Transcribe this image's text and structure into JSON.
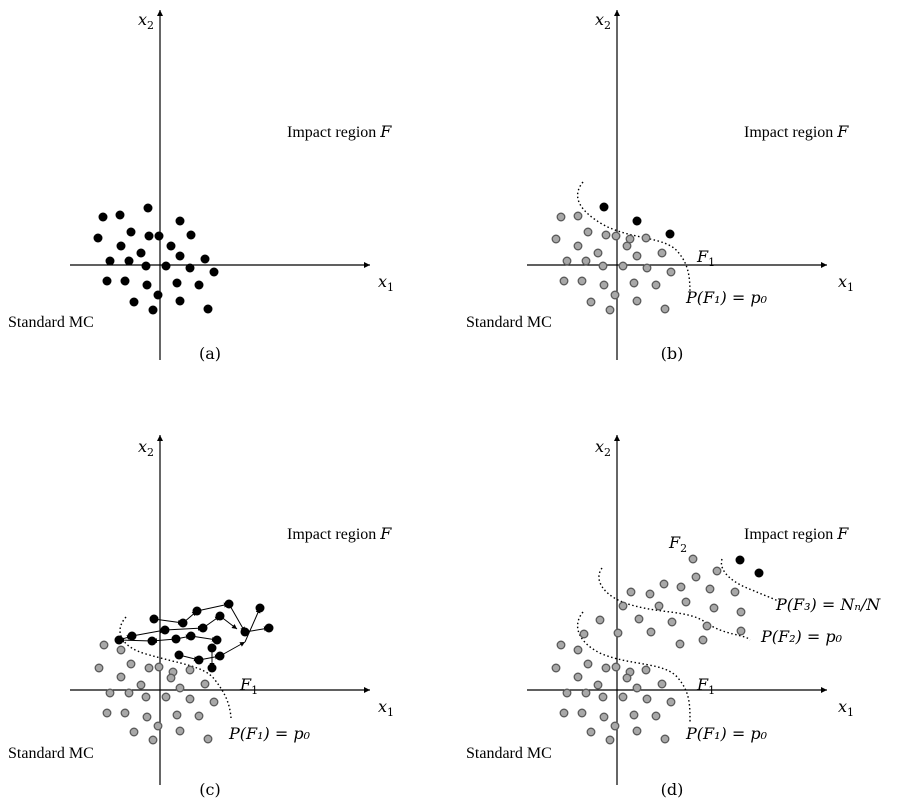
{
  "figure": {
    "panels": [
      {
        "caption": "(a)",
        "axis_x": "x",
        "axis_x_sub": "1",
        "axis_y": "x",
        "axis_y_sub": "2",
        "region_label": "Impact region ",
        "region_symbol": "F",
        "method_label": "Standard MC",
        "levels": []
      },
      {
        "caption": "(b)",
        "axis_x": "x",
        "axis_x_sub": "1",
        "axis_y": "x",
        "axis_y_sub": "2",
        "region_label": "Impact region ",
        "region_symbol": "F",
        "method_label": "Standard MC",
        "levels": [
          {
            "name": "F",
            "sub": "1",
            "prob_text": "P(F₁) = p₀"
          }
        ]
      },
      {
        "caption": "(c)",
        "axis_x": "x",
        "axis_x_sub": "1",
        "axis_y": "x",
        "axis_y_sub": "2",
        "region_label": "Impact region ",
        "region_symbol": "F",
        "method_label": "Standard MC",
        "levels": [
          {
            "name": "F",
            "sub": "1",
            "prob_text": "P(F₁) = p₀"
          }
        ]
      },
      {
        "caption": "(d)",
        "axis_x": "x",
        "axis_x_sub": "1",
        "axis_y": "x",
        "axis_y_sub": "2",
        "region_label": "Impact region ",
        "region_symbol": "F",
        "method_label": "Standard MC",
        "levels": [
          {
            "name": "F",
            "sub": "1",
            "prob_text": "P(F₁) = p₀"
          },
          {
            "name": "F",
            "sub": "2",
            "prob_text": "P(F₂) = p₀"
          },
          {
            "name": "F",
            "sub": "3",
            "prob_text": "P(F₃) = Nₙ/N"
          }
        ]
      }
    ],
    "colors": {
      "sample_black": "#000000",
      "sample_grey_fill": "#a8a8a8",
      "sample_grey_stroke": "#5a5a5a",
      "axis": "#000000"
    }
  }
}
